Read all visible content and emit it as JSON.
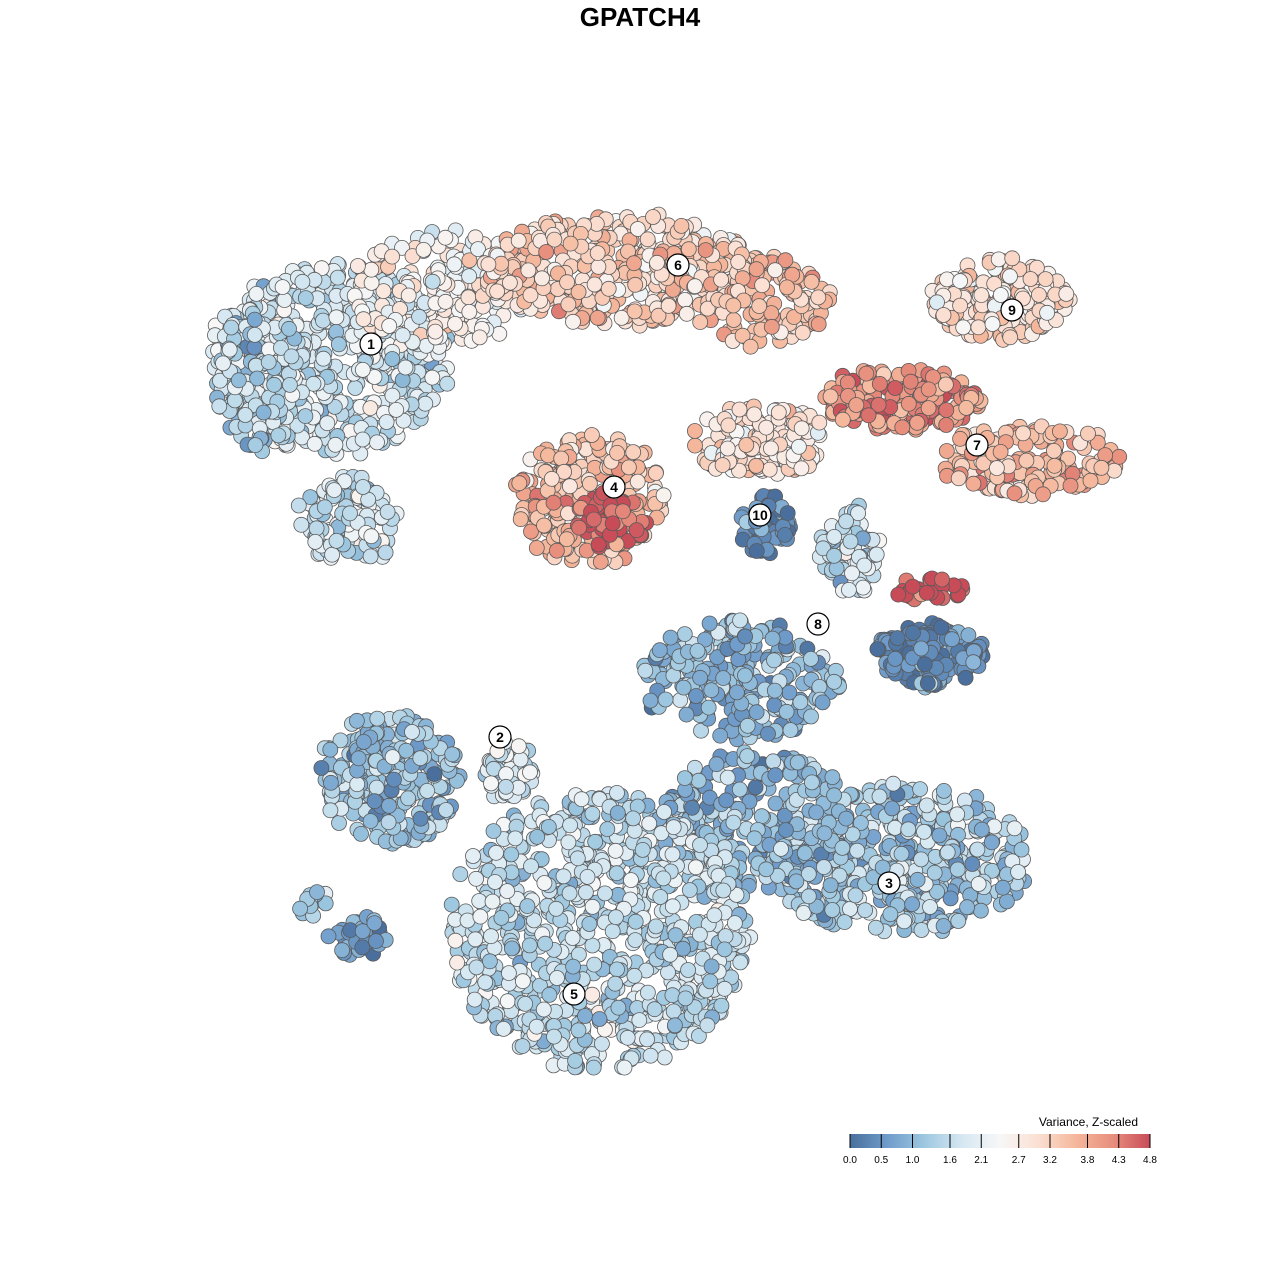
{
  "chart_data": {
    "type": "scatter",
    "title": "GPATCH4",
    "xlabel": "",
    "ylabel": "",
    "grid": false,
    "color_scale": {
      "title": "Variance, Z-scaled",
      "min": 0.0,
      "max": 4.8,
      "ticks": [
        "0.0",
        "0.5",
        "1.0",
        "1.6",
        "2.1",
        "2.7",
        "3.2",
        "3.8",
        "4.3",
        "4.8"
      ],
      "colors": [
        "#4a6f9c",
        "#6f9ccb",
        "#9ec8e0",
        "#d6e8f2",
        "#f7f7f7",
        "#fbe0d3",
        "#f5b89c",
        "#e88f7e",
        "#c84b58"
      ],
      "placement": "bottom-right"
    },
    "clusters": [
      {
        "label": "1",
        "mean_variance": 2.0
      },
      {
        "label": "2",
        "mean_variance": 1.1
      },
      {
        "label": "3",
        "mean_variance": 1.3
      },
      {
        "label": "4",
        "mean_variance": 3.4
      },
      {
        "label": "5",
        "mean_variance": 1.6
      },
      {
        "label": "6",
        "mean_variance": 3.1
      },
      {
        "label": "7",
        "mean_variance": 3.6
      },
      {
        "label": "8",
        "mean_variance": 0.8
      },
      {
        "label": "9",
        "mean_variance": 2.9
      },
      {
        "label": "10",
        "mean_variance": 0.3
      }
    ]
  }
}
